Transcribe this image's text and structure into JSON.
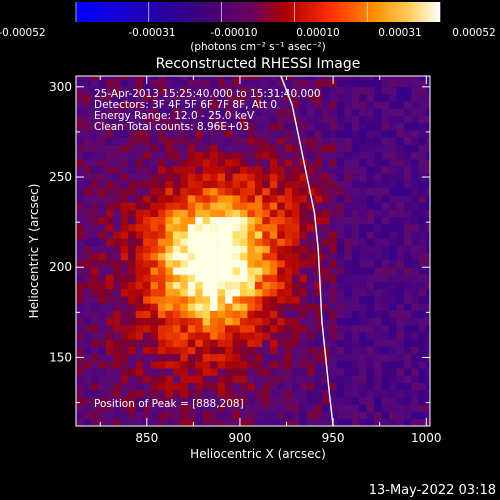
{
  "colorbar": {
    "ticks": [
      "-0.00052",
      "-0.00031",
      "-0.00010",
      "0.00010",
      "0.00031",
      "0.00052"
    ],
    "unit_label": "(photons cm⁻² s⁻¹ asec⁻²)",
    "range": [
      -0.00052,
      0.00052
    ]
  },
  "title": "Reconstructed RHESSI Image",
  "annotations": {
    "time": "25-Apr-2013 15:25:40.000 to 15:31:40.000",
    "detectors": "Detectors: 3F 4F 5F 6F 7F 8F, Att 0",
    "energy": "Energy Range: 12.0 - 25.0 keV",
    "clean": "Clean     Total counts: 8.96E+03",
    "peak": "Position of Peak = [888,208]"
  },
  "footer_timestamp": "13-May-2022 03:18",
  "chart_data": {
    "type": "heatmap",
    "title": "Reconstructed RHESSI Image",
    "xlabel": "Heliocentric X (arcsec)",
    "ylabel": "Heliocentric Y (arcsec)",
    "xlim": [
      812,
      1002
    ],
    "ylim": [
      112,
      306
    ],
    "xticks": [
      850,
      900,
      950,
      1000
    ],
    "yticks": [
      150,
      200,
      250,
      300
    ],
    "peak": {
      "x": 888,
      "y": 208
    },
    "limb_curve": [
      [
        922,
        306
      ],
      [
        928,
        290
      ],
      [
        932,
        270
      ],
      [
        936,
        250
      ],
      [
        940,
        230
      ],
      [
        942,
        210
      ],
      [
        943,
        190
      ],
      [
        944,
        170
      ],
      [
        946,
        150
      ],
      [
        948,
        130
      ],
      [
        950,
        112
      ]
    ],
    "colormap": [
      "#0000ff",
      "#4b0082",
      "#8b0000",
      "#ff4500",
      "#ffa500",
      "#ffff99",
      "#ffffff"
    ]
  }
}
